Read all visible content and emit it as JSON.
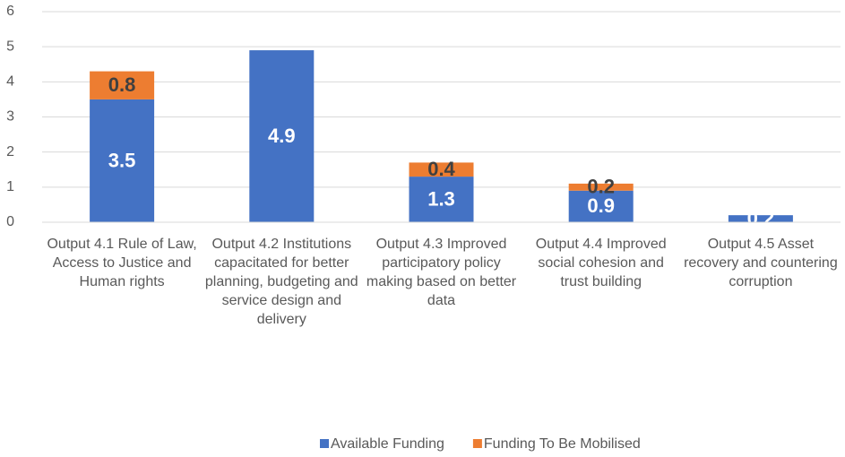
{
  "chart_data": {
    "type": "stacked-bar",
    "categories": [
      "Output 4.1 Rule of Law, Access to Justice and Human rights",
      "Output 4.2 Institutions capacitated for better planning, budgeting and service design and delivery",
      "Output 4.3 Improved participatory policy making based on better data",
      "Output 4.4 Improved social cohesion and trust building",
      "Output 4.5 Asset recovery and countering corruption"
    ],
    "series": [
      {
        "name": "Available Funding",
        "color": "#4472c4",
        "values": [
          3.5,
          4.9,
          1.3,
          0.9,
          0.2
        ]
      },
      {
        "name": "Funding To Be Mobilised",
        "color": "#ed7d31",
        "values": [
          0.8,
          null,
          0.4,
          0.2,
          null
        ]
      }
    ],
    "ylim": [
      0,
      6
    ],
    "yticks": [
      0,
      1,
      2,
      3,
      4,
      5,
      6
    ],
    "grid": true,
    "legend": "bottom"
  }
}
